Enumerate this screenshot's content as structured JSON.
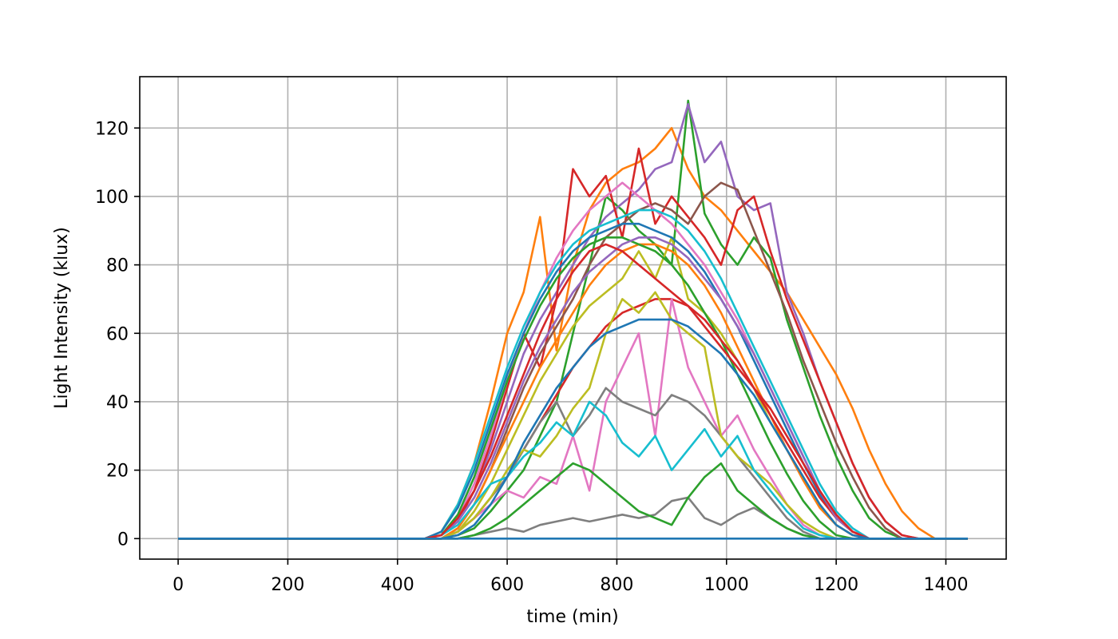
{
  "chart_data": {
    "type": "line",
    "title": "",
    "xlabel": "time (min)",
    "ylabel": "Light Intensity (klux)",
    "xlim": [
      -70,
      1510
    ],
    "ylim": [
      -6,
      135
    ],
    "xticks": [
      0,
      200,
      400,
      600,
      800,
      1000,
      1200,
      1400
    ],
    "yticks": [
      0,
      20,
      40,
      60,
      80,
      100,
      120
    ],
    "grid": true,
    "legend": "none",
    "x_step": 30,
    "x_range": [
      0,
      1440
    ],
    "palette": [
      "#1f77b4",
      "#ff7f0e",
      "#2ca02c",
      "#d62728",
      "#9467bd",
      "#8c564b",
      "#e377c2",
      "#7f7f7f",
      "#bcbd22",
      "#17becf"
    ],
    "series": [
      {
        "color": "#ff7f0e",
        "values": [
          0,
          0,
          0,
          0,
          0,
          0,
          0,
          0,
          0,
          0,
          0,
          0,
          0,
          0,
          0,
          0,
          2,
          10,
          22,
          40,
          60,
          72,
          94,
          55,
          80,
          96,
          104,
          108,
          110,
          114,
          120,
          108,
          100,
          96,
          90,
          84,
          78,
          72,
          64,
          56,
          48,
          38,
          26,
          16,
          8,
          3,
          0,
          0,
          0,
          0
        ]
      },
      {
        "color": "#2ca02c",
        "values": [
          0,
          0,
          0,
          0,
          0,
          0,
          0,
          0,
          0,
          0,
          0,
          0,
          0,
          0,
          0,
          0,
          0,
          1,
          3,
          8,
          14,
          20,
          30,
          40,
          60,
          80,
          100,
          96,
          90,
          86,
          80,
          128,
          95,
          86,
          80,
          88,
          82,
          64,
          50,
          36,
          24,
          14,
          6,
          2,
          0,
          0,
          0,
          0,
          0,
          0
        ]
      },
      {
        "color": "#9467bd",
        "values": [
          0,
          0,
          0,
          0,
          0,
          0,
          0,
          0,
          0,
          0,
          0,
          0,
          0,
          0,
          0,
          0,
          1,
          6,
          14,
          26,
          40,
          54,
          64,
          72,
          80,
          88,
          94,
          98,
          102,
          108,
          110,
          127,
          110,
          116,
          100,
          96,
          98,
          72,
          60,
          46,
          34,
          22,
          12,
          5,
          1,
          0,
          0,
          0,
          0,
          0
        ]
      },
      {
        "color": "#d62728",
        "values": [
          0,
          0,
          0,
          0,
          0,
          0,
          0,
          0,
          0,
          0,
          0,
          0,
          0,
          0,
          0,
          0,
          1,
          5,
          14,
          28,
          44,
          60,
          50,
          70,
          108,
          100,
          106,
          88,
          114,
          92,
          100,
          94,
          88,
          80,
          96,
          100,
          84,
          70,
          58,
          46,
          34,
          22,
          12,
          5,
          1,
          0,
          0,
          0,
          0,
          0
        ]
      },
      {
        "color": "#8c564b",
        "values": [
          0,
          0,
          0,
          0,
          0,
          0,
          0,
          0,
          0,
          0,
          0,
          0,
          0,
          0,
          0,
          0,
          0,
          3,
          10,
          20,
          32,
          44,
          54,
          62,
          70,
          80,
          88,
          92,
          96,
          98,
          96,
          92,
          100,
          104,
          102,
          90,
          78,
          66,
          52,
          40,
          28,
          18,
          9,
          3,
          0,
          0,
          0,
          0,
          0,
          0
        ]
      },
      {
        "color": "#e377c2",
        "values": [
          0,
          0,
          0,
          0,
          0,
          0,
          0,
          0,
          0,
          0,
          0,
          0,
          0,
          0,
          0,
          0,
          1,
          6,
          16,
          30,
          46,
          60,
          72,
          82,
          90,
          96,
          100,
          104,
          100,
          96,
          92,
          86,
          80,
          72,
          64,
          54,
          44,
          34,
          24,
          14,
          6,
          2,
          0,
          0,
          0,
          0,
          0,
          0,
          0,
          0
        ]
      },
      {
        "color": "#7f7f7f",
        "values": [
          0,
          0,
          0,
          0,
          0,
          0,
          0,
          0,
          0,
          0,
          0,
          0,
          0,
          0,
          0,
          0,
          0,
          0,
          1,
          2,
          3,
          2,
          4,
          5,
          6,
          5,
          6,
          7,
          6,
          7,
          11,
          12,
          6,
          4,
          7,
          9,
          6,
          3,
          1,
          0,
          0,
          0,
          0,
          0,
          0,
          0,
          0,
          0,
          0,
          0
        ]
      },
      {
        "color": "#bcbd22",
        "values": [
          0,
          0,
          0,
          0,
          0,
          0,
          0,
          0,
          0,
          0,
          0,
          0,
          0,
          0,
          0,
          0,
          0,
          2,
          8,
          16,
          26,
          36,
          46,
          54,
          62,
          68,
          72,
          76,
          84,
          76,
          88,
          70,
          66,
          60,
          52,
          44,
          34,
          26,
          18,
          10,
          4,
          1,
          0,
          0,
          0,
          0,
          0,
          0,
          0,
          0
        ]
      },
      {
        "color": "#17becf",
        "values": [
          0,
          0,
          0,
          0,
          0,
          0,
          0,
          0,
          0,
          0,
          0,
          0,
          0,
          0,
          0,
          0,
          2,
          10,
          22,
          36,
          50,
          62,
          72,
          80,
          86,
          90,
          92,
          94,
          96,
          96,
          94,
          90,
          84,
          76,
          66,
          56,
          46,
          36,
          26,
          16,
          8,
          3,
          0,
          0,
          0,
          0,
          0,
          0,
          0,
          0
        ]
      },
      {
        "color": "#1f77b4",
        "values": [
          0,
          0,
          0,
          0,
          0,
          0,
          0,
          0,
          0,
          0,
          0,
          0,
          0,
          0,
          0,
          0,
          2,
          9,
          20,
          34,
          48,
          60,
          70,
          78,
          84,
          88,
          90,
          92,
          92,
          90,
          88,
          84,
          78,
          70,
          62,
          52,
          42,
          32,
          22,
          13,
          6,
          2,
          0,
          0,
          0,
          0,
          0,
          0,
          0,
          0
        ]
      },
      {
        "color": "#ff7f0e",
        "values": [
          0,
          0,
          0,
          0,
          0,
          0,
          0,
          0,
          0,
          0,
          0,
          0,
          0,
          0,
          0,
          0,
          0,
          3,
          10,
          20,
          30,
          40,
          50,
          58,
          66,
          74,
          80,
          84,
          86,
          86,
          84,
          80,
          74,
          66,
          56,
          46,
          36,
          26,
          17,
          9,
          4,
          1,
          0,
          0,
          0,
          0,
          0,
          0,
          0,
          0
        ]
      },
      {
        "color": "#2ca02c",
        "values": [
          0,
          0,
          0,
          0,
          0,
          0,
          0,
          0,
          0,
          0,
          0,
          0,
          0,
          0,
          0,
          0,
          1,
          7,
          18,
          32,
          46,
          58,
          68,
          76,
          82,
          86,
          88,
          88,
          86,
          84,
          80,
          74,
          66,
          58,
          48,
          38,
          28,
          19,
          11,
          5,
          1,
          0,
          0,
          0,
          0,
          0,
          0,
          0,
          0,
          0
        ]
      },
      {
        "color": "#d62728",
        "values": [
          0,
          0,
          0,
          0,
          0,
          0,
          0,
          0,
          0,
          0,
          0,
          0,
          0,
          0,
          0,
          0,
          0,
          2,
          6,
          12,
          18,
          26,
          34,
          42,
          50,
          56,
          62,
          66,
          68,
          70,
          70,
          68,
          64,
          58,
          52,
          44,
          36,
          28,
          20,
          12,
          6,
          2,
          0,
          0,
          0,
          0,
          0,
          0,
          0,
          0
        ]
      },
      {
        "color": "#9467bd",
        "values": [
          0,
          0,
          0,
          0,
          0,
          0,
          0,
          0,
          0,
          0,
          0,
          0,
          0,
          0,
          0,
          0,
          1,
          5,
          12,
          22,
          34,
          46,
          56,
          64,
          72,
          78,
          82,
          86,
          88,
          88,
          86,
          82,
          76,
          70,
          62,
          54,
          44,
          34,
          24,
          14,
          6,
          2,
          0,
          0,
          0,
          0,
          0,
          0,
          0,
          0
        ]
      },
      {
        "color": "#e377c2",
        "values": [
          0,
          0,
          0,
          0,
          0,
          0,
          0,
          0,
          0,
          0,
          0,
          0,
          0,
          0,
          0,
          0,
          0,
          2,
          6,
          10,
          14,
          12,
          18,
          16,
          30,
          14,
          40,
          50,
          60,
          30,
          70,
          50,
          40,
          30,
          36,
          26,
          18,
          10,
          4,
          1,
          0,
          0,
          0,
          0,
          0,
          0,
          0,
          0,
          0,
          0
        ]
      },
      {
        "color": "#7f7f7f",
        "values": [
          0,
          0,
          0,
          0,
          0,
          0,
          0,
          0,
          0,
          0,
          0,
          0,
          0,
          0,
          0,
          0,
          0,
          2,
          6,
          12,
          18,
          26,
          34,
          40,
          30,
          36,
          44,
          40,
          38,
          36,
          42,
          40,
          36,
          30,
          24,
          18,
          12,
          6,
          2,
          0,
          0,
          0,
          0,
          0,
          0,
          0,
          0,
          0,
          0,
          0
        ]
      },
      {
        "color": "#2ca02c",
        "values": [
          0,
          0,
          0,
          0,
          0,
          0,
          0,
          0,
          0,
          0,
          0,
          0,
          0,
          0,
          0,
          0,
          0,
          0,
          1,
          3,
          6,
          10,
          14,
          18,
          22,
          20,
          16,
          12,
          8,
          6,
          4,
          12,
          18,
          22,
          14,
          10,
          6,
          3,
          1,
          0,
          0,
          0,
          0,
          0,
          0,
          0,
          0,
          0,
          0,
          0
        ]
      },
      {
        "color": "#bcbd22",
        "values": [
          0,
          0,
          0,
          0,
          0,
          0,
          0,
          0,
          0,
          0,
          0,
          0,
          0,
          0,
          0,
          0,
          0,
          2,
          6,
          12,
          20,
          26,
          24,
          30,
          38,
          44,
          60,
          70,
          66,
          72,
          64,
          60,
          56,
          30,
          24,
          20,
          16,
          10,
          5,
          2,
          0,
          0,
          0,
          0,
          0,
          0,
          0,
          0,
          0,
          0
        ]
      },
      {
        "color": "#17becf",
        "values": [
          0,
          0,
          0,
          0,
          0,
          0,
          0,
          0,
          0,
          0,
          0,
          0,
          0,
          0,
          0,
          0,
          1,
          4,
          10,
          16,
          18,
          24,
          28,
          34,
          30,
          40,
          36,
          28,
          24,
          30,
          20,
          26,
          32,
          24,
          30,
          20,
          14,
          8,
          3,
          1,
          0,
          0,
          0,
          0,
          0,
          0,
          0,
          0,
          0,
          0
        ]
      },
      {
        "color": "#d62728",
        "values": [
          0,
          0,
          0,
          0,
          0,
          0,
          0,
          0,
          0,
          0,
          0,
          0,
          0,
          0,
          0,
          0,
          1,
          6,
          14,
          24,
          36,
          48,
          60,
          70,
          78,
          84,
          86,
          84,
          80,
          76,
          72,
          68,
          62,
          56,
          50,
          44,
          38,
          30,
          22,
          14,
          7,
          2,
          0,
          0,
          0,
          0,
          0,
          0,
          0,
          0
        ]
      },
      {
        "color": "#1f77b4",
        "values": [
          0,
          0,
          0,
          0,
          0,
          0,
          0,
          0,
          0,
          0,
          0,
          0,
          0,
          0,
          0,
          0,
          0,
          1,
          4,
          10,
          18,
          28,
          36,
          44,
          50,
          56,
          60,
          62,
          64,
          64,
          64,
          62,
          58,
          54,
          48,
          42,
          34,
          26,
          18,
          10,
          4,
          1,
          0,
          0,
          0,
          0,
          0,
          0,
          0,
          0
        ]
      },
      {
        "color": "#1f77b4",
        "values": [
          0,
          0,
          0,
          0,
          0,
          0,
          0,
          0,
          0,
          0,
          0,
          0,
          0,
          0,
          0,
          0,
          0,
          0,
          0,
          0,
          0,
          0,
          0,
          0,
          0,
          0,
          0,
          0,
          0,
          0,
          0,
          0,
          0,
          0,
          0,
          0,
          0,
          0,
          0,
          0,
          0,
          0,
          0,
          0,
          0,
          0,
          0,
          0,
          0,
          0
        ]
      }
    ]
  }
}
